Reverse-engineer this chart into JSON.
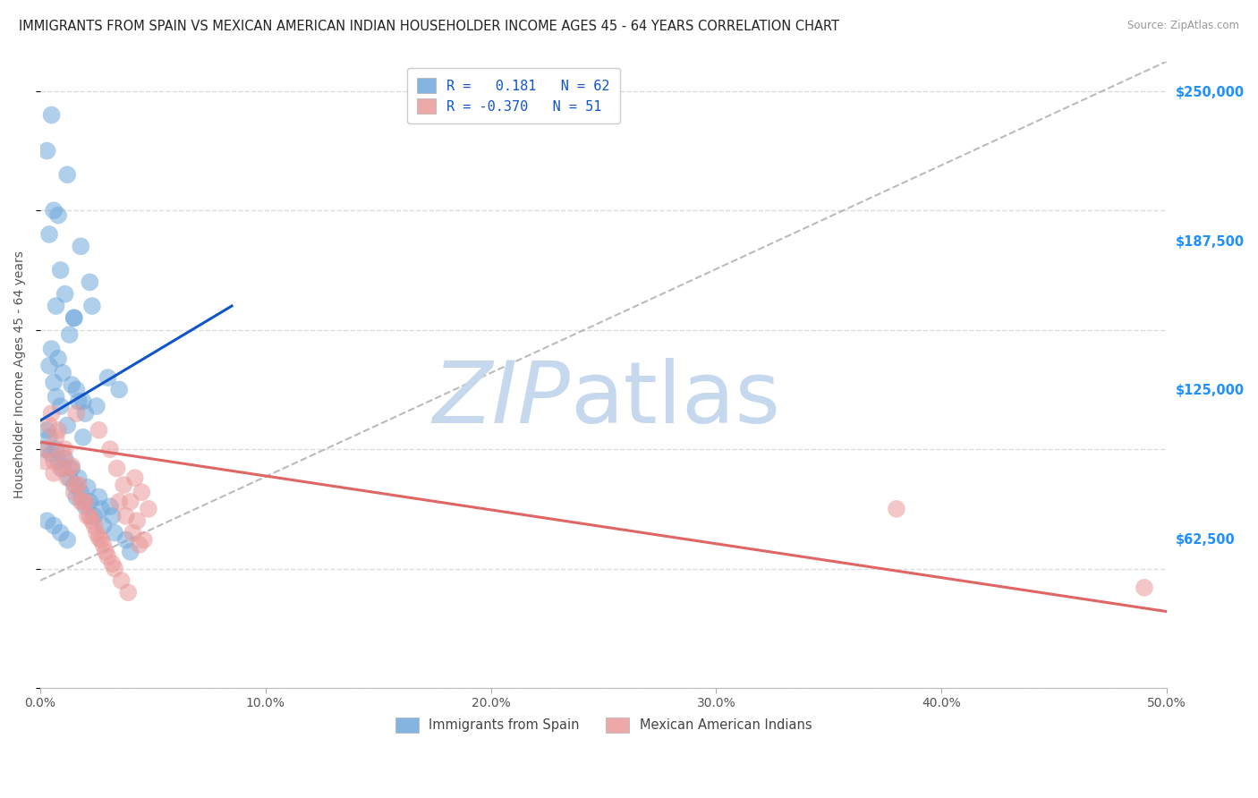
{
  "title": "IMMIGRANTS FROM SPAIN VS MEXICAN AMERICAN INDIAN HOUSEHOLDER INCOME AGES 45 - 64 YEARS CORRELATION CHART",
  "source": "Source: ZipAtlas.com",
  "ylabel": "Householder Income Ages 45 - 64 years",
  "xlim": [
    0.0,
    0.5
  ],
  "ylim": [
    0,
    262500
  ],
  "xtick_labels": [
    "0.0%",
    "10.0%",
    "20.0%",
    "30.0%",
    "40.0%",
    "50.0%"
  ],
  "xtick_vals": [
    0.0,
    0.1,
    0.2,
    0.3,
    0.4,
    0.5
  ],
  "ytick_labels": [
    "$62,500",
    "$125,000",
    "$187,500",
    "$250,000"
  ],
  "ytick_vals": [
    62500,
    125000,
    187500,
    250000
  ],
  "ytick_color": "#1e90ff",
  "r_blue": 0.181,
  "n_blue": 62,
  "r_pink": -0.37,
  "n_pink": 51,
  "blue_scatter_x": [
    0.005,
    0.012,
    0.008,
    0.018,
    0.022,
    0.003,
    0.006,
    0.004,
    0.009,
    0.011,
    0.007,
    0.015,
    0.013,
    0.005,
    0.008,
    0.01,
    0.014,
    0.017,
    0.02,
    0.003,
    0.004,
    0.006,
    0.007,
    0.009,
    0.012,
    0.016,
    0.019,
    0.025,
    0.03,
    0.035,
    0.002,
    0.005,
    0.008,
    0.01,
    0.013,
    0.015,
    0.018,
    0.022,
    0.027,
    0.032,
    0.004,
    0.007,
    0.011,
    0.014,
    0.017,
    0.021,
    0.026,
    0.031,
    0.003,
    0.006,
    0.009,
    0.012,
    0.016,
    0.02,
    0.024,
    0.028,
    0.033,
    0.038,
    0.015,
    0.023,
    0.04,
    0.019
  ],
  "blue_scatter_y": [
    240000,
    215000,
    198000,
    185000,
    170000,
    225000,
    200000,
    190000,
    175000,
    165000,
    160000,
    155000,
    148000,
    142000,
    138000,
    132000,
    127000,
    120000,
    115000,
    108000,
    135000,
    128000,
    122000,
    118000,
    110000,
    125000,
    105000,
    118000,
    130000,
    125000,
    100000,
    98000,
    95000,
    92000,
    88000,
    85000,
    82000,
    78000,
    75000,
    72000,
    105000,
    100000,
    96000,
    92000,
    88000,
    84000,
    80000,
    76000,
    70000,
    68000,
    65000,
    62000,
    80000,
    76000,
    72000,
    68000,
    65000,
    62000,
    155000,
    160000,
    57000,
    120000
  ],
  "pink_scatter_x": [
    0.003,
    0.006,
    0.009,
    0.012,
    0.015,
    0.018,
    0.021,
    0.024,
    0.027,
    0.03,
    0.004,
    0.007,
    0.01,
    0.013,
    0.016,
    0.019,
    0.022,
    0.025,
    0.028,
    0.032,
    0.005,
    0.008,
    0.011,
    0.014,
    0.017,
    0.02,
    0.023,
    0.026,
    0.029,
    0.033,
    0.036,
    0.039,
    0.042,
    0.045,
    0.048,
    0.002,
    0.035,
    0.038,
    0.041,
    0.044,
    0.006,
    0.016,
    0.026,
    0.031,
    0.034,
    0.037,
    0.04,
    0.043,
    0.046,
    0.38,
    0.49
  ],
  "pink_scatter_y": [
    100000,
    95000,
    92000,
    88000,
    82000,
    78000,
    72000,
    68000,
    62000,
    55000,
    110000,
    105000,
    98000,
    92000,
    85000,
    78000,
    72000,
    65000,
    60000,
    52000,
    115000,
    108000,
    100000,
    93000,
    85000,
    78000,
    70000,
    63000,
    57000,
    50000,
    45000,
    40000,
    88000,
    82000,
    75000,
    95000,
    78000,
    72000,
    65000,
    60000,
    90000,
    115000,
    108000,
    100000,
    92000,
    85000,
    78000,
    70000,
    62000,
    75000,
    42000
  ],
  "blue_line_x0": 0.0,
  "blue_line_x1": 0.085,
  "blue_line_y0": 112000,
  "blue_line_y1": 160000,
  "pink_line_x0": 0.0,
  "pink_line_x1": 0.5,
  "pink_line_y0": 103000,
  "pink_line_y1": 32000,
  "dashed_line_x0": 0.0,
  "dashed_line_x1": 0.5,
  "dashed_line_y0": 45000,
  "dashed_line_y1": 262500,
  "blue_color": "#6fa8dc",
  "pink_color": "#ea9999",
  "blue_line_color": "#1155cc",
  "pink_line_color": "#e06666",
  "dashed_line_color": "#aaaaaa",
  "watermark_zip": "ZIP",
  "watermark_atlas": "atlas",
  "watermark_color": "#c5d8ed",
  "background_color": "#ffffff",
  "grid_color": "#dddddd",
  "title_fontsize": 10.5,
  "source_fontsize": 8.5,
  "legend_r_color": "#1155cc",
  "legend_fontsize": 11
}
